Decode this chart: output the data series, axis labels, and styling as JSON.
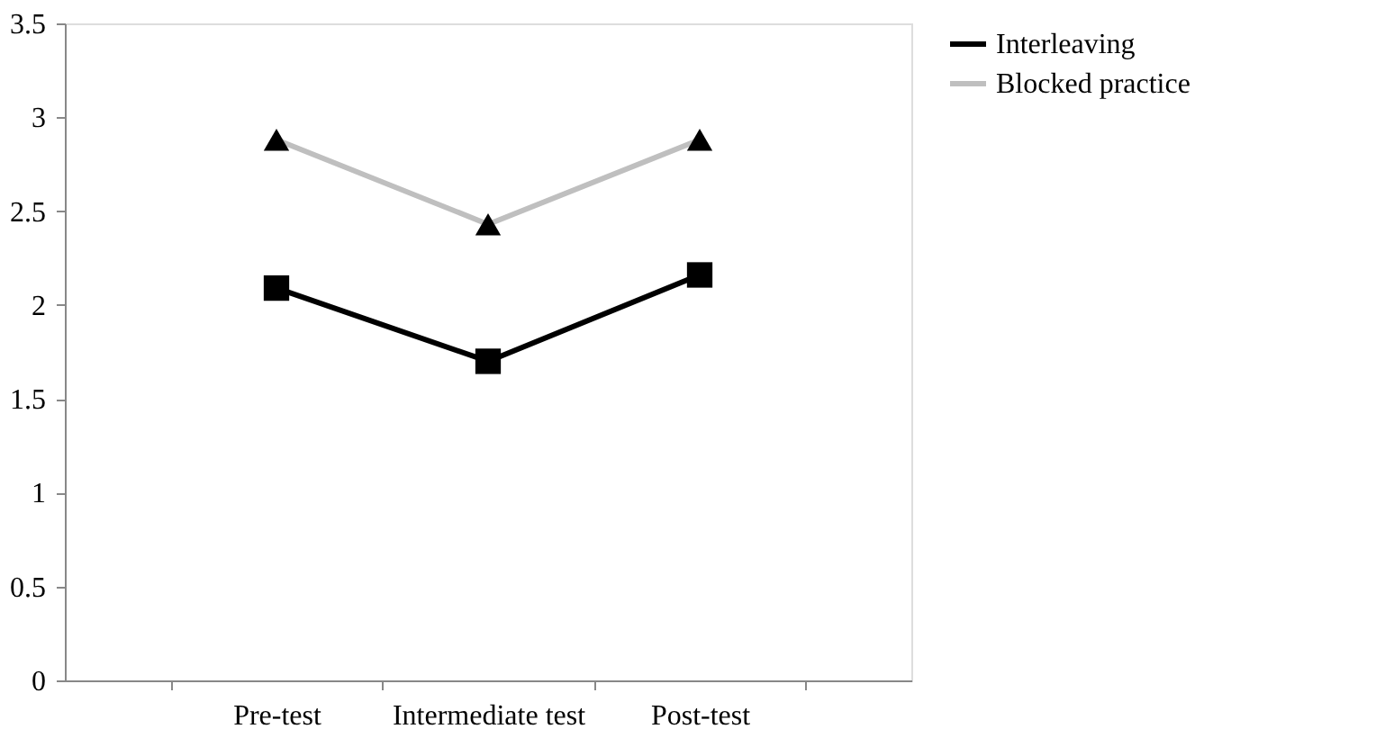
{
  "chart_data": {
    "type": "line",
    "categories": [
      "Pre-test",
      "Intermediate test",
      "Post-test"
    ],
    "series": [
      {
        "name": "Interleaving",
        "color": "#000000",
        "marker": "square",
        "values": [
          2.09,
          1.7,
          2.16
        ]
      },
      {
        "name": "Blocked practice",
        "color": "#bfbfbf",
        "marker": "triangle",
        "values": [
          2.88,
          2.43,
          2.88
        ]
      }
    ],
    "ylim": [
      0,
      3.5
    ],
    "yticks": [
      0,
      0.5,
      1,
      1.5,
      2,
      2.5,
      3,
      3.5
    ],
    "grid": false,
    "legend": "right",
    "line_style": "solid"
  }
}
